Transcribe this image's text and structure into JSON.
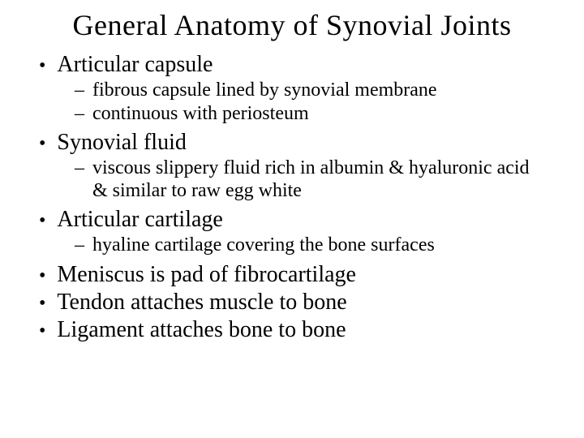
{
  "title": "General Anatomy of Synovial Joints",
  "items": [
    {
      "label": "Articular capsule",
      "sub": [
        "fibrous capsule lined by synovial membrane",
        "continuous with periosteum"
      ]
    },
    {
      "label": "Synovial fluid",
      "sub": [
        "viscous slippery fluid rich in albumin & hyaluronic acid & similar to raw egg white"
      ]
    },
    {
      "label": "Articular cartilage",
      "sub": [
        "hyaline cartilage covering the bone surfaces"
      ]
    },
    {
      "label": "Meniscus is pad of fibrocartilage",
      "sub": []
    },
    {
      "label": "Tendon attaches muscle to bone",
      "sub": []
    },
    {
      "label": "Ligament attaches bone to bone",
      "sub": []
    }
  ]
}
